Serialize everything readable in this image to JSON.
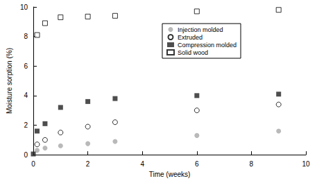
{
  "chart_data": {
    "type": "scatter",
    "x_label": "Time (weeks)",
    "y_label": "Moisture sorption (%)",
    "xlim": [
      0,
      10
    ],
    "xticks": [
      0,
      2,
      4,
      6,
      8,
      10
    ],
    "ylim": [
      0,
      10
    ],
    "yticks": [
      0,
      2,
      4,
      6,
      8,
      10
    ],
    "grid": false,
    "legend": "upper right",
    "series": [
      {
        "name": "Injection molded",
        "color": "#a8a8a8",
        "marker": "circle",
        "x": [
          0.14,
          0.43,
          1,
          2,
          3,
          6,
          9
        ],
        "values": [
          0.3,
          0.45,
          0.6,
          0.75,
          0.9,
          1.3,
          1.6
        ]
      },
      {
        "name": "Extruded",
        "color": "#000000",
        "marker": "open_circle",
        "x": [
          0.14,
          0.43,
          1,
          2,
          3,
          6,
          9
        ],
        "values": [
          0.7,
          1.0,
          1.5,
          1.9,
          2.2,
          3.0,
          3.4
        ]
      },
      {
        "name": "Compression molded",
        "color": "#222222",
        "marker": "square",
        "x": [
          0,
          0.14,
          0.43,
          1,
          2,
          3,
          6,
          9
        ],
        "values": [
          0.05,
          1.6,
          2.1,
          3.2,
          3.6,
          3.8,
          4.0,
          4.1
        ]
      },
      {
        "name": "Solid wood",
        "color": "#000000",
        "marker": "open_square",
        "x": [
          0.14,
          0.43,
          1,
          2,
          3,
          6,
          9
        ],
        "values": [
          8.1,
          8.9,
          9.3,
          9.35,
          9.4,
          9.7,
          9.8
        ]
      }
    ]
  }
}
